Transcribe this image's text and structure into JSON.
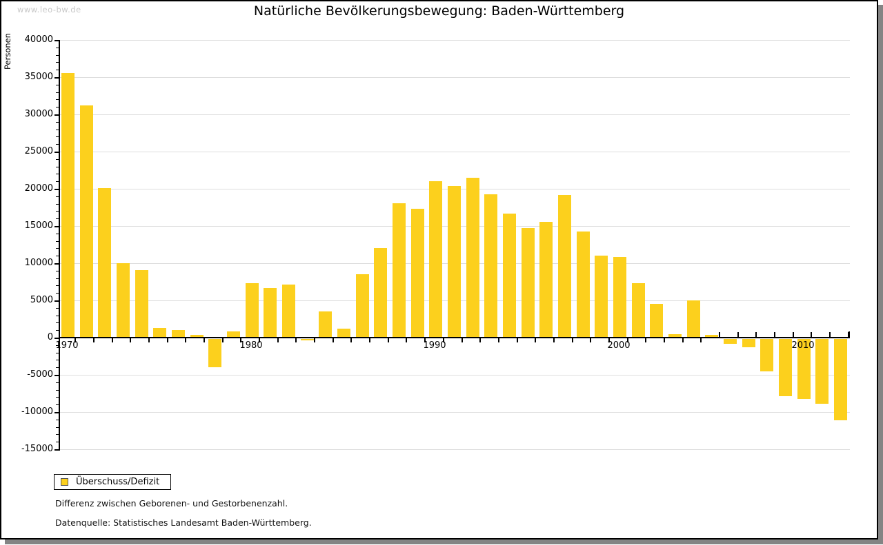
{
  "watermark": "www.leo-bw.de",
  "title": "Natürliche Bevölkerungsbewegung: Baden-Württemberg",
  "legend": {
    "label": "Überschuss/Defizit"
  },
  "footnotes": [
    "Differenz zwischen Geborenen- und Gestorbenenzahl.",
    "Datenquelle: Statistisches Landesamt Baden-Württemberg."
  ],
  "colors": {
    "bar": "#fcd01d",
    "grid": "#dddddd",
    "axis": "#000000",
    "watermark": "#c8c8c8",
    "frame_shadow": "#848484"
  },
  "chart_data": {
    "type": "bar",
    "title": "Natürliche Bevölkerungsbewegung: Baden-Württemberg",
    "xlabel": "",
    "ylabel": "Personen",
    "legend_entries": [
      "Überschuss/Defizit"
    ],
    "legend_position": "bottom-left",
    "grid": true,
    "ylim": [
      -15000,
      40000
    ],
    "y_major_step": 5000,
    "y_minor_step": 1000,
    "x_tick_labels": [
      1970,
      1980,
      1990,
      2000,
      2010
    ],
    "x": [
      1970,
      1971,
      1972,
      1973,
      1974,
      1975,
      1976,
      1977,
      1978,
      1979,
      1980,
      1981,
      1982,
      1983,
      1984,
      1985,
      1986,
      1987,
      1988,
      1989,
      1990,
      1991,
      1992,
      1993,
      1994,
      1995,
      1996,
      1997,
      1998,
      1999,
      2000,
      2001,
      2002,
      2003,
      2004,
      2005,
      2006,
      2007,
      2008,
      2009,
      2010,
      2011,
      2012
    ],
    "values": [
      35600,
      31200,
      20100,
      10000,
      9100,
      1300,
      1000,
      400,
      -4000,
      800,
      7300,
      6700,
      7100,
      -400,
      3500,
      1200,
      8500,
      12000,
      18100,
      17300,
      21000,
      20400,
      21500,
      19300,
      16700,
      14700,
      15600,
      19200,
      14300,
      11000,
      10800,
      7300,
      4500,
      500,
      5000,
      400,
      -800,
      -1300,
      -4500,
      -7900,
      -8200,
      -8900,
      -11100
    ]
  }
}
